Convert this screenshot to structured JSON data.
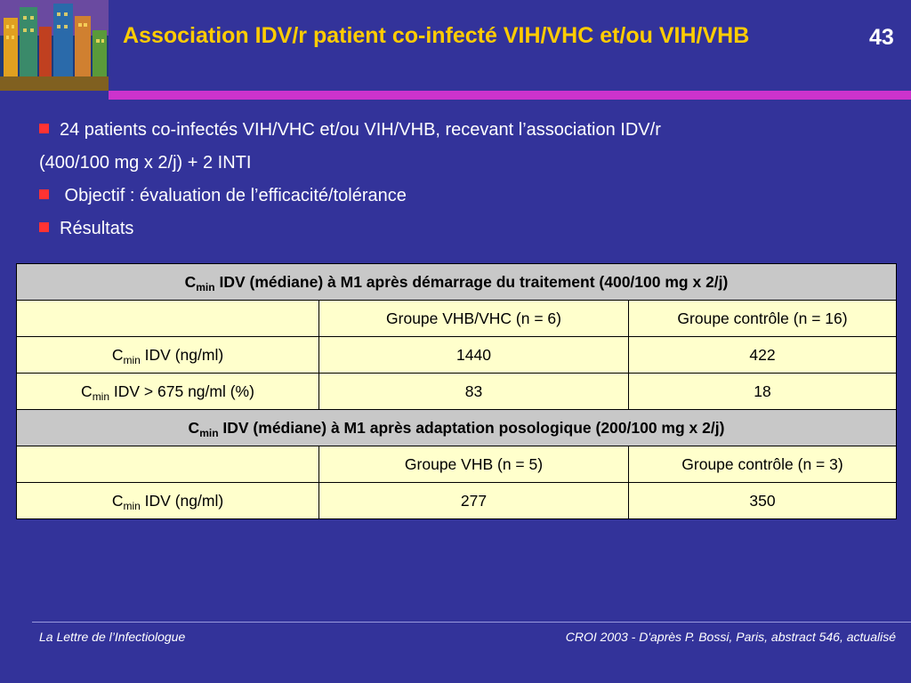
{
  "title": "Association IDV/r patient co-infecté VIH/VHC et/ou VIH/VHB",
  "slide_number": "43",
  "bullets": [
    "24 patients co-infectés VIH/VHC et/ou VIH/VHB, recevant l’association IDV/r",
    "(400/100 mg x 2/j) + 2 INTI",
    " Objectif : évaluation de l’efficacité/tolérance",
    "Résultats"
  ],
  "table": {
    "cmin_c": "C",
    "cmin_sub": "min",
    "section1": {
      "title": " IDV (médiane) à M1 après démarrage du traitement (400/100 mg x 2/j)",
      "col1": "Groupe VHB/VHC (n = 6)",
      "col2": "Groupe contrôle (n = 16)",
      "rows": [
        {
          "label": " IDV (ng/ml)",
          "v1": "1440",
          "v2": "422"
        },
        {
          "label": " IDV > 675 ng/ml (%)",
          "v1": "83",
          "v2": "18"
        }
      ]
    },
    "section2": {
      "title": " IDV (médiane) à M1 après adaptation posologique (200/100 mg x 2/j)",
      "col1": "Groupe VHB (n = 5)",
      "col2": "Groupe contrôle (n = 3)",
      "rows": [
        {
          "label": " IDV (ng/ml)",
          "v1": "277",
          "v2": "350"
        }
      ]
    }
  },
  "footer": {
    "left": "La Lettre de l’Infectiologue",
    "right": "CROI 2003 - D'après P. Bossi, Paris, abstract 546, actualisé"
  },
  "colors": {
    "background": "#33339a",
    "title": "#ffcc00",
    "rule": "#cc33cc",
    "bullet": "#ff3333",
    "cell": "#ffffcc",
    "header_cell": "#c8c8c8"
  }
}
